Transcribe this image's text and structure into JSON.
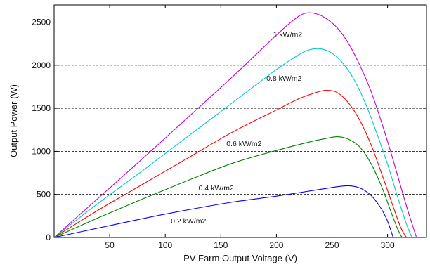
{
  "chart_data": {
    "type": "line",
    "title": "",
    "xlabel": "PV Farm Output Voltage (V)",
    "ylabel": "Output Power (W)",
    "xlim": [
      0,
      335
    ],
    "ylim": [
      0,
      2700
    ],
    "x_ticks": [
      50,
      100,
      150,
      200,
      250,
      300
    ],
    "y_ticks": [
      0,
      500,
      1000,
      1500,
      2000,
      2500
    ],
    "grid": "horizontal-dashed",
    "series": [
      {
        "name": "1   kW/m2",
        "color": "#cc00cc",
        "x": [
          0,
          40,
          80,
          120,
          160,
          200,
          215,
          225,
          235,
          245,
          255,
          265,
          275,
          285,
          295,
          305,
          315,
          322,
          326
        ],
        "y": [
          0,
          460,
          920,
          1390,
          1860,
          2350,
          2520,
          2600,
          2600,
          2540,
          2430,
          2250,
          2000,
          1700,
          1320,
          900,
          450,
          160,
          0
        ]
      },
      {
        "name": "0.8 kW/m2",
        "color": "#00cccc",
        "x": [
          0,
          40,
          80,
          120,
          160,
          200,
          220,
          230,
          240,
          250,
          260,
          270,
          280,
          290,
          300,
          310,
          318,
          322
        ],
        "y": [
          0,
          400,
          780,
          1170,
          1560,
          1950,
          2120,
          2180,
          2190,
          2140,
          2020,
          1830,
          1560,
          1220,
          850,
          430,
          120,
          0
        ]
      },
      {
        "name": "0.6 kW/m2",
        "color": "#ff0000",
        "x": [
          0,
          40,
          80,
          120,
          160,
          200,
          220,
          235,
          245,
          255,
          265,
          275,
          285,
          295,
          305,
          312,
          317
        ],
        "y": [
          0,
          320,
          620,
          920,
          1220,
          1480,
          1610,
          1680,
          1710,
          1680,
          1560,
          1360,
          1080,
          730,
          360,
          110,
          0
        ]
      },
      {
        "name": "0.4 kW/m2",
        "color": "#008000",
        "x": [
          0,
          40,
          80,
          120,
          160,
          200,
          230,
          245,
          255,
          265,
          275,
          285,
          295,
          303,
          309,
          313
        ],
        "y": [
          0,
          230,
          450,
          660,
          860,
          1010,
          1110,
          1150,
          1170,
          1140,
          1050,
          860,
          580,
          300,
          100,
          0
        ]
      },
      {
        "name": "0.2 kW/m2",
        "color": "#0000ff",
        "x": [
          0,
          40,
          80,
          120,
          160,
          200,
          240,
          255,
          265,
          275,
          285,
          293,
          299,
          303,
          305
        ],
        "y": [
          0,
          110,
          220,
          320,
          410,
          480,
          560,
          590,
          600,
          575,
          490,
          360,
          220,
          80,
          0
        ]
      }
    ],
    "annotations": [
      {
        "series": 0,
        "text": "1   kW/m2",
        "x": 197,
        "y": 2330
      },
      {
        "series": 1,
        "text": "0.8 kW/m2",
        "x": 191,
        "y": 1820
      },
      {
        "series": 2,
        "text": "0.6 kW/m2",
        "x": 155,
        "y": 1060
      },
      {
        "series": 3,
        "text": "0.4 kW/m2",
        "x": 130,
        "y": 545
      },
      {
        "series": 4,
        "text": "0.2 kW/m2",
        "x": 105,
        "y": 165
      }
    ]
  }
}
